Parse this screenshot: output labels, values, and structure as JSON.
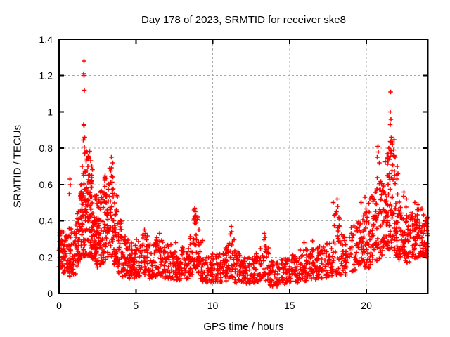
{
  "chart_data": {
    "type": "scatter",
    "title": "Day 178 of 2023, SRMTID for receiver ske8",
    "xlabel": "GPS time / hours",
    "ylabel": "SRMTID / TECUs",
    "xlim": [
      0,
      24
    ],
    "ylim": [
      0,
      1.4
    ],
    "xticks": {
      "values": [
        0,
        5,
        10,
        15,
        20
      ],
      "labels": [
        "0",
        "5",
        "10",
        "15",
        "20"
      ]
    },
    "yticks": {
      "values": [
        0,
        0.2,
        0.4,
        0.6,
        0.8,
        1.0,
        1.2,
        1.4
      ],
      "labels": [
        "0",
        "0.2",
        "0.4",
        "0.6",
        "0.8",
        "1",
        "1.2",
        "1.4"
      ]
    },
    "grid": true,
    "grid_style": "dotted",
    "legend": "none",
    "colors": {
      "marker": "#ff0000",
      "grid": "#a8a8a8",
      "axis": "#000000",
      "background": "#ffffff"
    },
    "marker": {
      "shape": "plus",
      "size": 7
    },
    "seed": 42,
    "bands_format": "[t_start_hours, t_end_hours, y_min_TECUs, y_max_TECUs, n_points, low_skew]",
    "density_bands": [
      [
        0.0,
        0.25,
        0.14,
        0.38,
        30,
        1.2
      ],
      [
        0.25,
        0.6,
        0.11,
        0.34,
        35,
        1.2
      ],
      [
        0.6,
        0.9,
        0.09,
        0.36,
        30,
        1.2
      ],
      [
        0.9,
        1.15,
        0.1,
        0.38,
        25,
        1.2
      ],
      [
        1.15,
        1.35,
        0.15,
        0.46,
        28,
        1.2
      ],
      [
        1.35,
        1.55,
        0.18,
        0.62,
        32,
        1.3
      ],
      [
        1.55,
        1.75,
        0.2,
        0.85,
        40,
        1.4
      ],
      [
        1.75,
        2.0,
        0.2,
        0.8,
        45,
        1.35
      ],
      [
        2.0,
        2.2,
        0.2,
        0.72,
        40,
        1.3
      ],
      [
        2.2,
        2.45,
        0.16,
        0.6,
        40,
        1.3
      ],
      [
        2.45,
        2.7,
        0.14,
        0.52,
        35,
        1.25
      ],
      [
        2.7,
        2.95,
        0.16,
        0.58,
        35,
        1.25
      ],
      [
        2.95,
        3.25,
        0.18,
        0.66,
        40,
        1.25
      ],
      [
        3.25,
        3.55,
        0.2,
        0.7,
        35,
        1.25
      ],
      [
        3.55,
        3.8,
        0.16,
        0.55,
        30,
        1.25
      ],
      [
        3.8,
        4.1,
        0.11,
        0.4,
        30,
        1.2
      ],
      [
        4.1,
        4.5,
        0.09,
        0.32,
        35,
        1.15
      ],
      [
        4.5,
        5.0,
        0.08,
        0.28,
        42,
        1.15
      ],
      [
        5.0,
        5.4,
        0.09,
        0.3,
        30,
        1.25
      ],
      [
        5.4,
        5.8,
        0.1,
        0.33,
        30,
        1.25
      ],
      [
        5.8,
        6.3,
        0.08,
        0.28,
        36,
        1.25
      ],
      [
        6.3,
        6.8,
        0.09,
        0.31,
        36,
        1.25
      ],
      [
        6.8,
        7.3,
        0.08,
        0.27,
        36,
        1.2
      ],
      [
        7.3,
        7.9,
        0.07,
        0.24,
        42,
        1.2
      ],
      [
        7.9,
        8.5,
        0.08,
        0.26,
        42,
        1.2
      ],
      [
        8.5,
        8.75,
        0.1,
        0.32,
        20,
        1.3
      ],
      [
        8.75,
        9.05,
        0.12,
        0.47,
        26,
        1.5
      ],
      [
        9.05,
        9.35,
        0.08,
        0.3,
        24,
        1.3
      ],
      [
        9.35,
        9.9,
        0.06,
        0.2,
        40,
        1.2
      ],
      [
        9.9,
        10.6,
        0.06,
        0.22,
        46,
        1.2
      ],
      [
        10.6,
        11.0,
        0.07,
        0.26,
        30,
        1.25
      ],
      [
        11.0,
        11.4,
        0.08,
        0.33,
        30,
        1.35
      ],
      [
        11.4,
        11.9,
        0.06,
        0.24,
        36,
        1.2
      ],
      [
        11.9,
        12.5,
        0.05,
        0.2,
        42,
        1.2
      ],
      [
        12.5,
        13.1,
        0.06,
        0.22,
        42,
        1.2
      ],
      [
        13.1,
        13.7,
        0.07,
        0.3,
        35,
        1.35
      ],
      [
        13.7,
        14.3,
        0.04,
        0.18,
        42,
        1.2
      ],
      [
        14.3,
        15.0,
        0.05,
        0.19,
        46,
        1.2
      ],
      [
        15.0,
        15.6,
        0.06,
        0.22,
        40,
        1.2
      ],
      [
        15.6,
        16.2,
        0.07,
        0.25,
        40,
        1.25
      ],
      [
        16.2,
        16.8,
        0.07,
        0.26,
        40,
        1.25
      ],
      [
        16.8,
        17.4,
        0.08,
        0.27,
        40,
        1.25
      ],
      [
        17.4,
        17.9,
        0.09,
        0.3,
        32,
        1.25
      ],
      [
        17.9,
        18.4,
        0.1,
        0.45,
        30,
        1.5
      ],
      [
        18.4,
        18.9,
        0.1,
        0.32,
        30,
        1.2
      ],
      [
        18.9,
        19.4,
        0.12,
        0.38,
        30,
        1.25
      ],
      [
        19.4,
        19.8,
        0.13,
        0.42,
        30,
        1.25
      ],
      [
        19.8,
        20.2,
        0.14,
        0.5,
        32,
        1.3
      ],
      [
        20.2,
        20.6,
        0.15,
        0.58,
        32,
        1.3
      ],
      [
        20.6,
        20.9,
        0.17,
        0.68,
        26,
        1.3
      ],
      [
        20.9,
        21.2,
        0.2,
        0.62,
        34,
        1.3
      ],
      [
        21.2,
        21.5,
        0.22,
        0.78,
        40,
        1.35
      ],
      [
        21.5,
        21.8,
        0.22,
        0.85,
        40,
        1.35
      ],
      [
        21.8,
        22.1,
        0.2,
        0.68,
        36,
        1.3
      ],
      [
        22.1,
        22.5,
        0.18,
        0.58,
        40,
        1.25
      ],
      [
        22.5,
        22.9,
        0.17,
        0.48,
        36,
        1.15
      ],
      [
        22.9,
        23.3,
        0.18,
        0.45,
        36,
        1.1
      ],
      [
        23.3,
        23.7,
        0.2,
        0.48,
        36,
        1.1
      ],
      [
        23.7,
        23.97,
        0.2,
        0.44,
        26,
        1.1
      ]
    ],
    "outlier_points": [
      [
        1.62,
        1.28
      ],
      [
        1.61,
        1.21
      ],
      [
        1.63,
        1.2
      ],
      [
        1.64,
        1.12
      ],
      [
        1.6,
        0.93
      ],
      [
        1.63,
        0.925
      ],
      [
        1.66,
        0.86
      ],
      [
        1.78,
        0.74
      ],
      [
        1.84,
        0.78
      ],
      [
        1.95,
        0.75
      ],
      [
        2.05,
        0.73
      ],
      [
        1.5,
        0.7
      ],
      [
        3.42,
        0.75
      ],
      [
        3.5,
        0.72
      ],
      [
        3.3,
        0.69
      ],
      [
        2.98,
        0.64
      ],
      [
        0.7,
        0.63
      ],
      [
        0.74,
        0.6
      ],
      [
        0.66,
        0.55
      ],
      [
        8.82,
        0.47
      ],
      [
        8.86,
        0.45
      ],
      [
        8.9,
        0.43
      ],
      [
        8.79,
        0.41
      ],
      [
        8.93,
        0.39
      ],
      [
        9.1,
        0.35
      ],
      [
        11.2,
        0.37
      ],
      [
        11.23,
        0.34
      ],
      [
        13.35,
        0.33
      ],
      [
        13.4,
        0.31
      ],
      [
        15.95,
        0.28
      ],
      [
        16.5,
        0.29
      ],
      [
        6.55,
        0.33
      ],
      [
        5.55,
        0.35
      ],
      [
        7.6,
        0.28
      ],
      [
        17.85,
        0.5
      ],
      [
        18.1,
        0.52
      ],
      [
        18.15,
        0.48
      ],
      [
        18.05,
        0.45
      ],
      [
        21.58,
        1.11
      ],
      [
        21.56,
        1.0
      ],
      [
        21.6,
        0.96
      ],
      [
        21.55,
        0.93
      ],
      [
        21.63,
        0.86
      ],
      [
        20.75,
        0.81
      ],
      [
        20.78,
        0.78
      ],
      [
        20.7,
        0.75
      ],
      [
        20.85,
        0.72
      ],
      [
        21.45,
        0.8
      ],
      [
        21.7,
        0.82
      ],
      [
        21.78,
        0.79
      ],
      [
        21.88,
        0.75
      ],
      [
        22.0,
        0.7
      ],
      [
        22.06,
        0.66
      ],
      [
        19.65,
        0.5
      ],
      [
        19.9,
        0.53
      ],
      [
        23.15,
        0.5
      ],
      [
        23.35,
        0.49
      ],
      [
        22.6,
        0.52
      ]
    ]
  }
}
